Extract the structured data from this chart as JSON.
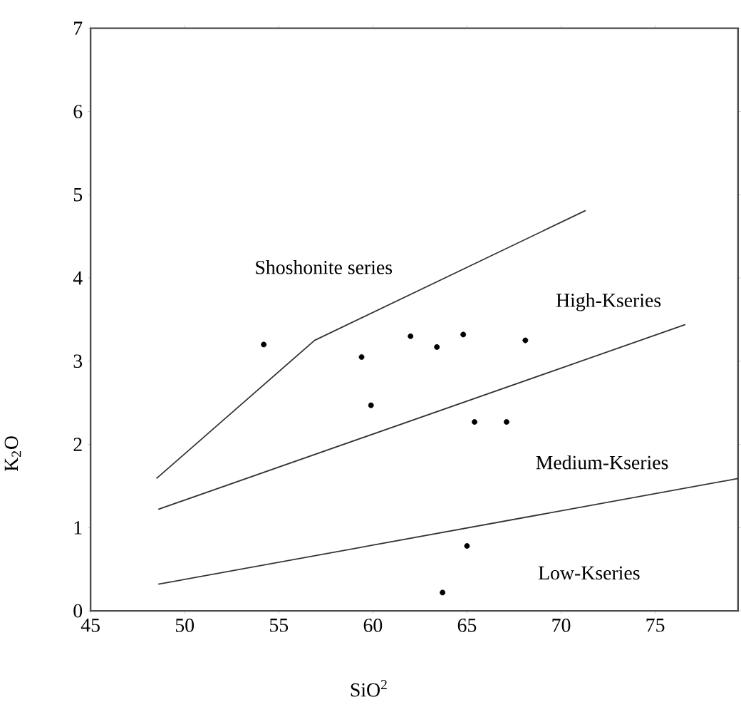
{
  "chart_data": {
    "type": "scatter",
    "xlabel": "SiO$^{2}$",
    "ylabel": "K$_{2}$O",
    "xlim": [
      45,
      79.4
    ],
    "ylim": [
      0,
      7
    ],
    "xticks": [
      45,
      50,
      55,
      60,
      65,
      70,
      75
    ],
    "yticks": [
      0,
      1,
      2,
      3,
      4,
      5,
      6,
      7
    ],
    "series": [
      {
        "color": "#000000",
        "marker": "circle",
        "x": [
          54.2,
          59.4,
          59.9,
          62.0,
          63.4,
          64.8,
          65.4,
          67.1,
          68.1,
          63.7,
          65.0
        ],
        "values": [
          3.2,
          3.05,
          2.47,
          3.3,
          3.17,
          3.32,
          2.27,
          2.27,
          3.25,
          0.22,
          0.78
        ]
      },
      {
        "type": "line",
        "color": "#333333",
        "marker": "none",
        "x": [
          48.5,
          56.9,
          71.3
        ],
        "values": [
          1.59,
          3.25,
          4.81
        ]
      },
      {
        "type": "line",
        "color": "#333333",
        "marker": "none",
        "x": [
          48.6,
          76.6
        ],
        "values": [
          1.22,
          3.44
        ]
      },
      {
        "type": "line",
        "color": "#333333",
        "marker": "none",
        "x": [
          48.6,
          79.4
        ],
        "values": [
          0.32,
          1.59
        ]
      }
    ],
    "annotations": [
      "Shoshonite series",
      "High-Kseries",
      "Medium-Kseries",
      "Low-Kseries"
    ]
  }
}
